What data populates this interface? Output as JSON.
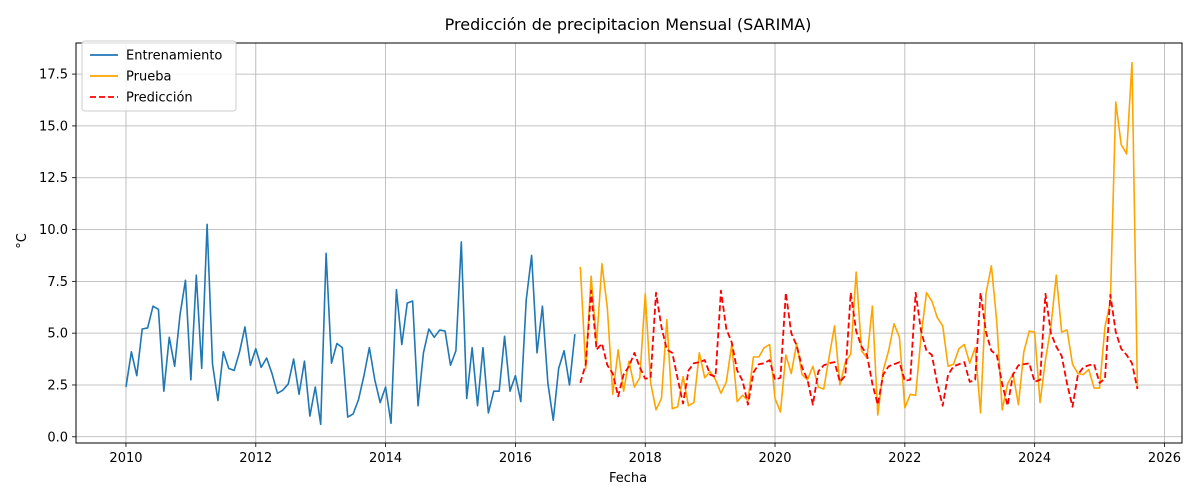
{
  "chart_data": {
    "type": "line",
    "title": "Predicción de precipitacion Mensual (SARIMA)",
    "xlabel": "Fecha",
    "ylabel": "°C",
    "xlim": [
      2009.23,
      2026.27
    ],
    "ylim": [
      -0.3,
      19.0
    ],
    "x_ticks": [
      2010,
      2012,
      2014,
      2016,
      2018,
      2020,
      2022,
      2024,
      2026
    ],
    "x_tick_labels": [
      "2010",
      "2012",
      "2014",
      "2016",
      "2018",
      "2020",
      "2022",
      "2024",
      "2026"
    ],
    "y_ticks": [
      0.0,
      2.5,
      5.0,
      7.5,
      10.0,
      12.5,
      15.0,
      17.5
    ],
    "y_tick_labels": [
      "0.0",
      "2.5",
      "5.0",
      "7.5",
      "10.0",
      "12.5",
      "15.0",
      "17.5"
    ],
    "grid": true,
    "legend_position": "upper-left",
    "series": [
      {
        "name": "Entrenamiento",
        "color": "#1f77b4",
        "style": "solid",
        "start": 2010.0,
        "step": 0.08333,
        "values": [
          2.4,
          4.1,
          2.95,
          5.2,
          5.25,
          6.3,
          6.15,
          2.2,
          4.8,
          3.4,
          5.9,
          7.55,
          2.75,
          7.8,
          3.3,
          10.25,
          3.5,
          1.75,
          4.1,
          3.3,
          3.2,
          4.1,
          5.3,
          3.45,
          4.25,
          3.35,
          3.8,
          3.05,
          2.1,
          2.25,
          2.55,
          3.75,
          2.05,
          3.65,
          1.0,
          2.4,
          0.6,
          8.85,
          3.55,
          4.5,
          4.3,
          0.95,
          1.1,
          1.8,
          2.95,
          4.3,
          2.75,
          1.65,
          2.4,
          0.65,
          7.1,
          4.45,
          6.45,
          6.55,
          1.5,
          4.05,
          5.2,
          4.8,
          5.15,
          5.1,
          3.45,
          4.15,
          9.4,
          1.85,
          4.3,
          1.5,
          4.3,
          1.15,
          2.2,
          2.2,
          4.85,
          2.2,
          2.95,
          1.7,
          6.6,
          8.75,
          4.05,
          6.3,
          2.6,
          0.8,
          3.3,
          4.15,
          2.5,
          4.95
        ]
      },
      {
        "name": "Prueba",
        "color": "#ffa500",
        "style": "solid",
        "start": 2017.0,
        "step": 0.08333,
        "values": [
          8.2,
          3.3,
          7.75,
          4.5,
          8.35,
          6.2,
          2.05,
          4.2,
          2.2,
          3.65,
          2.4,
          2.85,
          6.9,
          2.6,
          1.3,
          1.85,
          5.65,
          1.35,
          1.45,
          2.9,
          1.5,
          1.65,
          4.05,
          2.85,
          3.15,
          2.75,
          2.1,
          2.65,
          4.45,
          1.7,
          2.0,
          1.75,
          3.85,
          3.85,
          4.3,
          4.45,
          1.85,
          1.2,
          3.95,
          3.05,
          4.5,
          3.0,
          2.75,
          3.4,
          2.4,
          2.3,
          3.85,
          5.35,
          2.5,
          3.6,
          4.0,
          7.95,
          4.15,
          3.8,
          6.3,
          1.05,
          3.2,
          4.15,
          5.45,
          4.8,
          1.4,
          2.05,
          2.0,
          4.85,
          6.95,
          6.55,
          5.75,
          5.35,
          3.4,
          3.5,
          4.25,
          4.45,
          3.55,
          4.3,
          1.15,
          6.9,
          8.25,
          5.55,
          1.3,
          2.55,
          3.05,
          1.55,
          4.1,
          5.1,
          5.05,
          1.65,
          3.7,
          5.3,
          7.8,
          5.05,
          5.15,
          3.5,
          3.05,
          3.0,
          3.25,
          2.35,
          2.35,
          5.3,
          6.5,
          16.15,
          14.1,
          13.65,
          18.05,
          2.3
        ]
      },
      {
        "name": "Predicción",
        "color": "#ff0000",
        "style": "dashed",
        "start": 2017.0,
        "step": 0.08333,
        "values": [
          2.6,
          3.5,
          7.05,
          4.2,
          4.5,
          3.45,
          3.05,
          1.95,
          3.0,
          3.4,
          4.05,
          3.35,
          2.8,
          2.85,
          6.95,
          5.3,
          4.2,
          4.05,
          2.8,
          1.6,
          3.2,
          3.55,
          3.6,
          3.7,
          3.0,
          2.9,
          7.05,
          5.2,
          4.55,
          3.2,
          2.7,
          1.55,
          3.1,
          3.5,
          3.55,
          3.7,
          2.75,
          2.85,
          6.95,
          5.0,
          4.4,
          3.35,
          2.75,
          1.55,
          3.15,
          3.45,
          3.55,
          3.6,
          2.65,
          2.95,
          6.95,
          5.1,
          4.35,
          3.95,
          2.55,
          1.55,
          3.0,
          3.4,
          3.5,
          3.6,
          2.7,
          2.75,
          6.95,
          5.1,
          4.15,
          3.95,
          2.55,
          1.5,
          3.0,
          3.4,
          3.5,
          3.6,
          2.65,
          2.75,
          6.95,
          5.05,
          4.15,
          3.95,
          2.55,
          1.5,
          3.0,
          3.45,
          3.5,
          3.55,
          2.65,
          2.75,
          6.9,
          5.0,
          4.35,
          3.9,
          2.55,
          1.45,
          3.0,
          3.35,
          3.45,
          3.5,
          2.6,
          2.8,
          6.85,
          5.05,
          4.25,
          3.95,
          3.55,
          2.3
        ]
      }
    ]
  }
}
